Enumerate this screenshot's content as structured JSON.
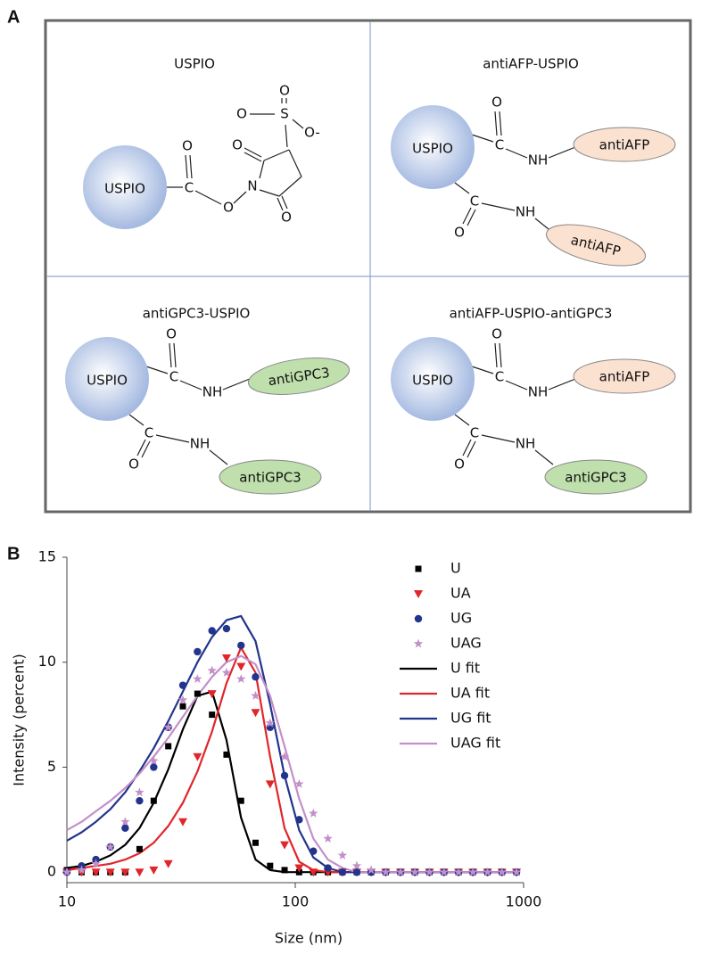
{
  "panel_labels": [
    "A",
    "B"
  ],
  "diagram": {
    "quadrants": [
      {
        "title": "USPIO",
        "particle": "USPIO",
        "atoms": [
          "C",
          "O",
          "O",
          "N",
          "O",
          "O",
          "S",
          "O",
          "O",
          "O-"
        ]
      },
      {
        "title": "antiAFP-USPIO",
        "particle": "USPIO",
        "atoms": [
          "C",
          "O",
          "NH",
          "C",
          "O",
          "NH"
        ],
        "antibodies": [
          {
            "name": "antiAFP",
            "color": "#fbe1d0"
          },
          {
            "name": "antiAFP",
            "color": "#fbe1d0"
          }
        ]
      },
      {
        "title": "antiGPC3-USPIO",
        "particle": "USPIO",
        "atoms": [
          "C",
          "O",
          "NH",
          "C",
          "O",
          "NH"
        ],
        "antibodies": [
          {
            "name": "antiGPC3",
            "color": "#bfe0ac"
          },
          {
            "name": "antiGPC3",
            "color": "#bfe0ac"
          }
        ]
      },
      {
        "title": "antiAFP-USPIO-antiGPC3",
        "particle": "USPIO",
        "atoms": [
          "C",
          "O",
          "NH",
          "C",
          "O",
          "NH"
        ],
        "antibodies": [
          {
            "name": "antiAFP",
            "color": "#fbe1d0"
          },
          {
            "name": "antiGPC3",
            "color": "#bfe0ac"
          }
        ]
      }
    ]
  },
  "chart_data": {
    "type": "scatter",
    "xlabel": "Size (nm)",
    "ylabel": "Intensity (percent)",
    "xscale": "log",
    "xlim": [
      10,
      1000
    ],
    "xticks": [
      10,
      100,
      1000
    ],
    "ylim": [
      -0.5,
      15
    ],
    "yticks": [
      0,
      5,
      10,
      15
    ],
    "x": [
      10,
      11.6,
      13.4,
      15.5,
      18,
      20.8,
      24,
      27.8,
      32.2,
      37.3,
      43.2,
      50,
      57.9,
      67,
      77.6,
      89.8,
      104,
      120,
      139,
      161,
      186,
      215,
      249,
      289,
      334,
      387,
      448,
      519,
      600,
      695,
      804,
      931
    ],
    "series": [
      {
        "name": "U",
        "color": "#000000",
        "marker": "square",
        "values": [
          0.1,
          0,
          0,
          0,
          0,
          1.1,
          3.4,
          6.0,
          7.9,
          8.5,
          7.5,
          5.6,
          3.4,
          1.4,
          0.3,
          0.1,
          0,
          0,
          0,
          0,
          0,
          0,
          0,
          0,
          0,
          0,
          0,
          0,
          0,
          0,
          0,
          0
        ]
      },
      {
        "name": "UA",
        "color": "#e0262a",
        "marker": "triangle-down",
        "values": [
          0,
          0,
          0,
          0,
          0,
          0,
          0.1,
          0.4,
          2.4,
          5.5,
          8.5,
          10.2,
          9.8,
          7.6,
          4.2,
          1.3,
          0.2,
          0,
          0,
          0,
          0,
          0,
          0,
          0,
          0,
          0,
          0,
          0,
          0,
          0,
          0,
          0
        ]
      },
      {
        "name": "UG",
        "color": "#22348c",
        "marker": "circle",
        "values": [
          0,
          0.3,
          0.6,
          1.2,
          2.1,
          3.4,
          5.0,
          6.9,
          8.9,
          10.5,
          11.5,
          11.6,
          10.8,
          9.3,
          6.9,
          4.6,
          2.5,
          1.0,
          0.2,
          0,
          0,
          0,
          0,
          0,
          0,
          0,
          0,
          0,
          0,
          0,
          0,
          0
        ]
      },
      {
        "name": "UAG",
        "color": "#c38fc9",
        "marker": "star",
        "values": [
          0,
          0.1,
          0.4,
          1.2,
          2.4,
          3.8,
          5.3,
          6.9,
          8.2,
          9.2,
          9.6,
          9.5,
          9.2,
          8.4,
          7.1,
          5.5,
          4.2,
          2.8,
          1.6,
          0.8,
          0.3,
          0.1,
          0,
          0,
          0,
          0,
          0,
          0,
          0,
          0,
          0,
          0
        ]
      },
      {
        "name": "U fit",
        "color": "#000000",
        "marker": "line",
        "values": [
          0.2,
          0.3,
          0.5,
          0.8,
          1.3,
          2.1,
          3.3,
          4.9,
          6.8,
          8.4,
          8.6,
          6.3,
          2.6,
          0.6,
          0.1,
          0,
          0,
          0,
          0,
          0,
          0,
          0,
          0,
          0,
          0,
          0,
          0,
          0,
          0,
          0,
          0,
          0
        ]
      },
      {
        "name": "UA fit",
        "color": "#e0262a",
        "marker": "line",
        "values": [
          0.1,
          0.2,
          0.3,
          0.4,
          0.6,
          0.9,
          1.4,
          2.2,
          3.3,
          4.8,
          6.7,
          9.0,
          10.7,
          9.5,
          5.5,
          2.1,
          0.5,
          0.1,
          0,
          0,
          0,
          0,
          0,
          0,
          0,
          0,
          0,
          0,
          0,
          0,
          0,
          0
        ]
      },
      {
        "name": "UG fit",
        "color": "#22348c",
        "marker": "line",
        "values": [
          1.5,
          1.9,
          2.4,
          3.0,
          3.8,
          4.8,
          5.9,
          7.2,
          8.6,
          10.0,
          11.2,
          12.0,
          12.2,
          11.0,
          8.0,
          4.6,
          2.0,
          0.7,
          0.2,
          0,
          0,
          0,
          0,
          0,
          0,
          0,
          0,
          0,
          0,
          0,
          0,
          0
        ]
      },
      {
        "name": "UAG fit",
        "color": "#c38fc9",
        "marker": "line",
        "values": [
          2.0,
          2.4,
          2.9,
          3.4,
          4.0,
          4.7,
          5.5,
          6.4,
          7.4,
          8.4,
          9.3,
          10.0,
          10.3,
          9.9,
          8.4,
          6.0,
          3.5,
          1.6,
          0.6,
          0.2,
          0,
          0,
          0,
          0,
          0,
          0,
          0,
          0,
          0,
          0,
          0,
          0
        ]
      }
    ]
  }
}
